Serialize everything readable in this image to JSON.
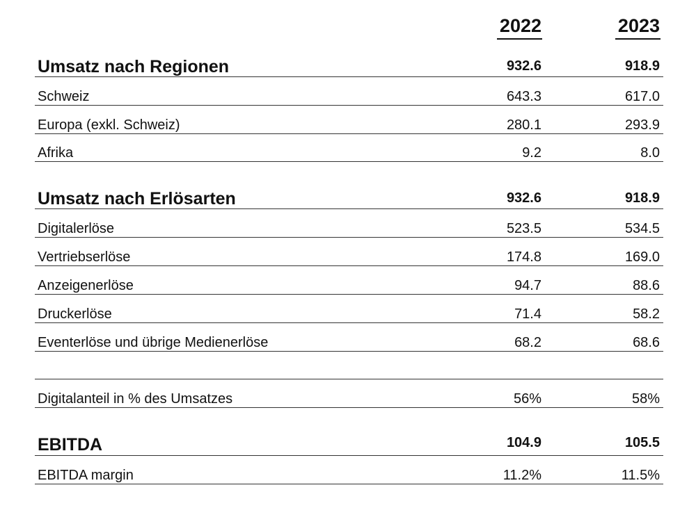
{
  "header": {
    "year_2022": "2022",
    "year_2023": "2023"
  },
  "sections": {
    "regionen": {
      "title": "Umsatz nach Regionen",
      "total_2022": "932.6",
      "total_2023": "918.9",
      "rows": [
        {
          "label": "Schweiz",
          "v2022": "643.3",
          "v2023": "617.0"
        },
        {
          "label": "Europa (exkl. Schweiz)",
          "v2022": "280.1",
          "v2023": "293.9"
        },
        {
          "label": "Afrika",
          "v2022": "9.2",
          "v2023": "8.0"
        }
      ]
    },
    "erloesarten": {
      "title": "Umsatz nach Erlösarten",
      "total_2022": "932.6",
      "total_2023": "918.9",
      "rows": [
        {
          "label": "Digitalerlöse",
          "v2022": "523.5",
          "v2023": "534.5"
        },
        {
          "label": "Vertriebserlöse",
          "v2022": "174.8",
          "v2023": "169.0"
        },
        {
          "label": "Anzeigenerlöse",
          "v2022": "94.7",
          "v2023": "88.6"
        },
        {
          "label": "Druckerlöse",
          "v2022": "71.4",
          "v2023": "58.2"
        },
        {
          "label": "Eventerlöse und übrige Medienerlöse",
          "v2022": "68.2",
          "v2023": "68.6"
        }
      ]
    },
    "digitalanteil": {
      "label": "Digitalanteil in % des Umsatzes",
      "v2022": "56%",
      "v2023": "58%"
    },
    "ebitda": {
      "title": "EBITDA",
      "total_2022": "104.9",
      "total_2023": "105.5",
      "rows": [
        {
          "label": "EBITDA margin",
          "v2022": "11.2%",
          "v2023": "11.5%"
        }
      ]
    }
  }
}
